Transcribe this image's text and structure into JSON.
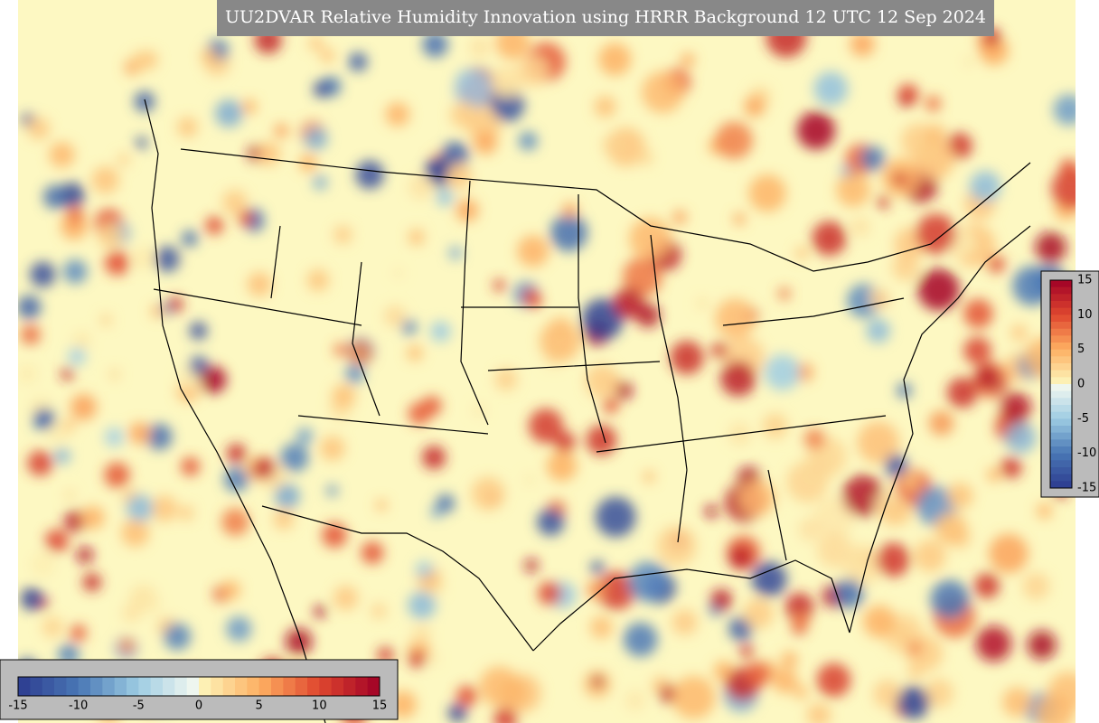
{
  "title": "UU2DVAR Relative Humidity Innovation using HRRR Background 12 UTC 12 Sep 2024",
  "colorbar_horizontal": {
    "ticks": [
      -15,
      -10,
      -5,
      0,
      5,
      10,
      15
    ]
  },
  "colorbar_vertical": {
    "ticks": [
      15,
      10,
      5,
      0,
      -5,
      -10,
      -15
    ]
  }
}
